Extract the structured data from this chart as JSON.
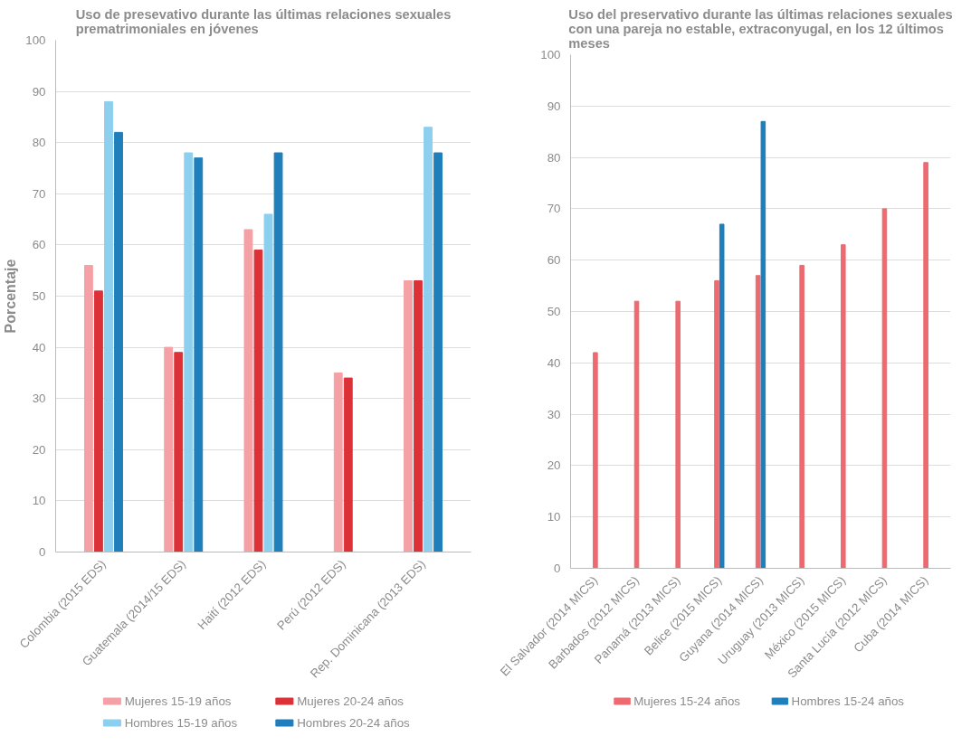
{
  "chart_data": [
    {
      "type": "bar",
      "title": "Uso de presevativo durante las últimas relaciones sexuales prematrimoniales en jóvenes",
      "ylabel": "Porcentaje",
      "categories": [
        "Colombia (2015 EDS)",
        "Guatemala (2014/15 EDS)",
        "Haití (2012 EDS)",
        "Perú (2012 EDS)",
        "Rep. Dominicana (2013 EDS)"
      ],
      "series": [
        {
          "name": "Mujeres 15-19 años",
          "color": "#f4a0a5",
          "values": [
            56,
            40,
            63,
            35,
            53
          ]
        },
        {
          "name": "Mujeres 20-24 años",
          "color": "#dc3237",
          "values": [
            51,
            39,
            59,
            34,
            53
          ]
        },
        {
          "name": "Hombres 15-19 años",
          "color": "#8ccfee",
          "values": [
            88,
            78,
            66,
            null,
            83
          ]
        },
        {
          "name": "Hombres 20-24 años",
          "color": "#1f7fba",
          "values": [
            82,
            77,
            78,
            null,
            78
          ]
        }
      ],
      "ylim": [
        0,
        100
      ],
      "yticks": [
        0,
        10,
        20,
        30,
        40,
        50,
        60,
        70,
        80,
        90,
        100
      ],
      "grid": "y",
      "legend": "bottom"
    },
    {
      "type": "bar",
      "title": "Uso del preservativo durante las últimas relaciones sexuales con una pareja no estable, extraconyugal, en los 12 últimos meses",
      "categories": [
        "El Salvador (2014 MICS)",
        "Barbados (2012 MICS)",
        "Panamá (2013 MICS)",
        "Belice (2015 MICS)",
        "Guyana (2014 MICS)",
        "Uruguay (2013 MICS)",
        "México (2015 MICS)",
        "Santa Lucía (2012 MICS)",
        "Cuba (2014 MICS)"
      ],
      "series": [
        {
          "name": "Mujeres 15-24 años",
          "color": "#ec6a70",
          "values": [
            42,
            52,
            52,
            56,
            57,
            59,
            63,
            70,
            79
          ]
        },
        {
          "name": "Hombres 15-24 años",
          "color": "#1f7fba",
          "values": [
            null,
            null,
            null,
            67,
            87,
            null,
            null,
            null,
            null
          ]
        }
      ],
      "ylim": [
        0,
        100
      ],
      "yticks": [
        0,
        10,
        20,
        30,
        40,
        50,
        60,
        70,
        80,
        90,
        100
      ],
      "grid": "y",
      "legend": "bottom"
    }
  ]
}
